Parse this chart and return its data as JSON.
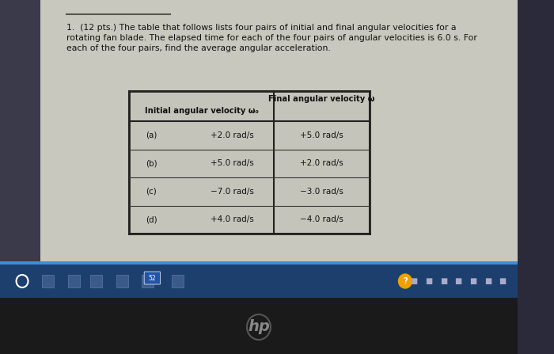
{
  "title_lines": [
    "1.  (12 pts.) The table that follows lists four pairs of initial and final angular velocities for a",
    "rotating fan blade. The elapsed time for each of the four pairs of angular velocities is 6.0 s. For",
    "each of the four pairs, find the average angular acceleration."
  ],
  "col_header_1": "Initial angular velocity ω₀",
  "col_header_2": "Final angular velocity ω",
  "rows": [
    {
      "label": "(a)",
      "initial": "+2.0 rad/s",
      "final": "+5.0 rad/s"
    },
    {
      "label": "(b)",
      "initial": "+5.0 rad/s",
      "final": "+2.0 rad/s"
    },
    {
      "label": "(c)",
      "initial": "−7.0 rad/s",
      "final": "−3.0 rad/s"
    },
    {
      "label": "(d)",
      "initial": "+4.0 rad/s",
      "final": "−4.0 rad/s"
    }
  ],
  "screen_bg": "#2a2a3a",
  "paper_bg": "#c8c8be",
  "taskbar_bg": "#1c3f6e",
  "taskbar_accent": "#3a8fd8",
  "laptop_body": "#1a1a1a",
  "text_color": "#111111",
  "table_border": "#333333",
  "title_fontsize": 7.8,
  "header_fontsize": 7.2,
  "body_fontsize": 7.5
}
